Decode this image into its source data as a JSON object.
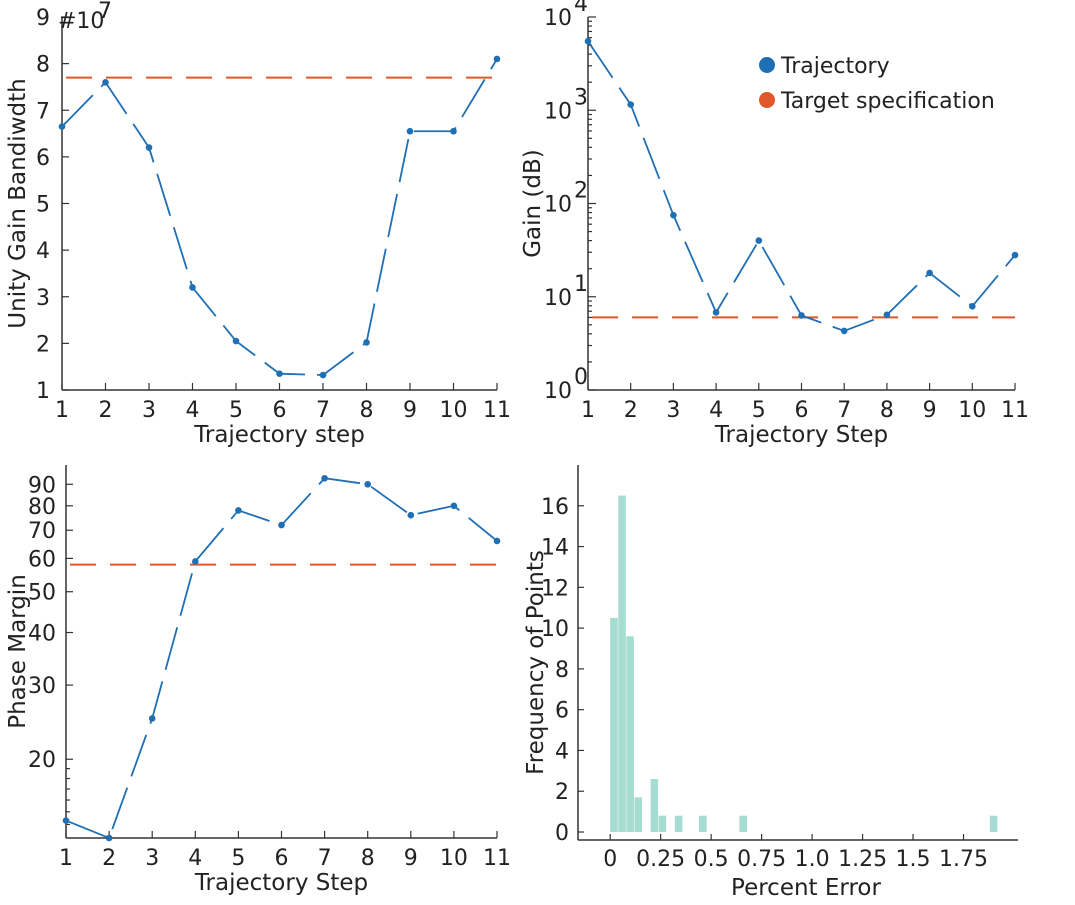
{
  "colors": {
    "trajectory": "#1f6fb4",
    "target": "#e0582a",
    "histogram": "#a7dcd3",
    "axis": "#333333"
  },
  "legend": {
    "items": [
      {
        "label": "Trajectory",
        "color": "#1f6fb4"
      },
      {
        "label": "Target specification",
        "color": "#e0582a"
      }
    ],
    "placement": "top-right of gain panel"
  },
  "chart_data": [
    {
      "type": "line",
      "xlabel": "Trajectory step",
      "ylabel": "Unity Gain Bandiwdth",
      "exponent_label": "#10",
      "exponent_power": "7",
      "x": [
        1,
        2,
        3,
        4,
        5,
        6,
        7,
        8,
        9,
        10,
        11
      ],
      "series": [
        {
          "values": [
            6.65,
            7.6,
            6.2,
            3.2,
            2.05,
            1.35,
            1.32,
            2.02,
            6.55,
            6.55,
            8.1
          ]
        }
      ],
      "target": 7.7,
      "xticks": [
        "1",
        "2",
        "3",
        "4",
        "5",
        "6",
        "7",
        "8",
        "9",
        "10",
        "11"
      ],
      "yticks": [
        "1",
        "2",
        "3",
        "4",
        "5",
        "6",
        "7",
        "8",
        "9"
      ],
      "xlim": [
        1,
        11
      ],
      "ylim": [
        1,
        9
      ]
    },
    {
      "type": "line",
      "xlabel": "Trajectory Step",
      "ylabel": "Gain (dB)",
      "yscale": "log",
      "x": [
        1,
        2,
        3,
        4,
        5,
        6,
        7,
        8,
        9,
        10,
        11
      ],
      "series": [
        {
          "values": [
            5500,
            1150,
            75,
            6.8,
            40,
            6.3,
            4.3,
            6.4,
            18,
            7.9,
            28
          ]
        }
      ],
      "target": 6,
      "xticks": [
        "1",
        "2",
        "3",
        "4",
        "5",
        "6",
        "7",
        "8",
        "9",
        "10",
        "11"
      ],
      "yticks": [
        {
          "base": "10",
          "exp": "0"
        },
        {
          "base": "10",
          "exp": "1"
        },
        {
          "base": "10",
          "exp": "2"
        },
        {
          "base": "10",
          "exp": "3"
        },
        {
          "base": "10",
          "exp": "4"
        }
      ],
      "xlim": [
        1,
        11
      ],
      "ylim": [
        1,
        10000
      ]
    },
    {
      "type": "line",
      "xlabel": "Trajectory Step",
      "ylabel": "Phase Margin",
      "yscale": "log",
      "x": [
        1,
        2,
        3,
        4,
        5,
        6,
        7,
        8,
        9,
        10,
        11
      ],
      "series": [
        {
          "values": [
            14.3,
            13,
            25,
            59,
            78,
            72,
            93,
            90,
            76,
            80,
            66
          ]
        }
      ],
      "target": 58,
      "xticks": [
        "1",
        "2",
        "3",
        "4",
        "5",
        "6",
        "7",
        "8",
        "9",
        "10",
        "11"
      ],
      "yticks": [
        "20",
        "30",
        "40",
        "50",
        "60",
        "70",
        "80",
        "90"
      ],
      "xlim": [
        1,
        11
      ],
      "ylim": [
        13,
        100
      ]
    },
    {
      "type": "bar",
      "xlabel": "Percent Error",
      "ylabel": "Frequency of Points",
      "bins": [
        {
          "start": 0.0,
          "end": 0.04,
          "count": 10.5
        },
        {
          "start": 0.04,
          "end": 0.08,
          "count": 16.5
        },
        {
          "start": 0.08,
          "end": 0.12,
          "count": 9.6
        },
        {
          "start": 0.12,
          "end": 0.16,
          "count": 1.7
        },
        {
          "start": 0.2,
          "end": 0.24,
          "count": 2.6
        },
        {
          "start": 0.24,
          "end": 0.28,
          "count": 0.8
        },
        {
          "start": 0.32,
          "end": 0.36,
          "count": 0.8
        },
        {
          "start": 0.44,
          "end": 0.48,
          "count": 0.8
        },
        {
          "start": 0.64,
          "end": 0.68,
          "count": 0.8
        },
        {
          "start": 1.88,
          "end": 1.92,
          "count": 0.8
        }
      ],
      "xticks": [
        "0",
        "0.25",
        "0.5",
        "0.75",
        "1.0",
        "1.25",
        "1.5",
        "1.75"
      ],
      "yticks": [
        "0",
        "2",
        "4",
        "6",
        "8",
        "10",
        "12",
        "14",
        "16"
      ],
      "xlim": [
        -0.1,
        2.0
      ],
      "ylim": [
        0,
        18
      ]
    }
  ]
}
